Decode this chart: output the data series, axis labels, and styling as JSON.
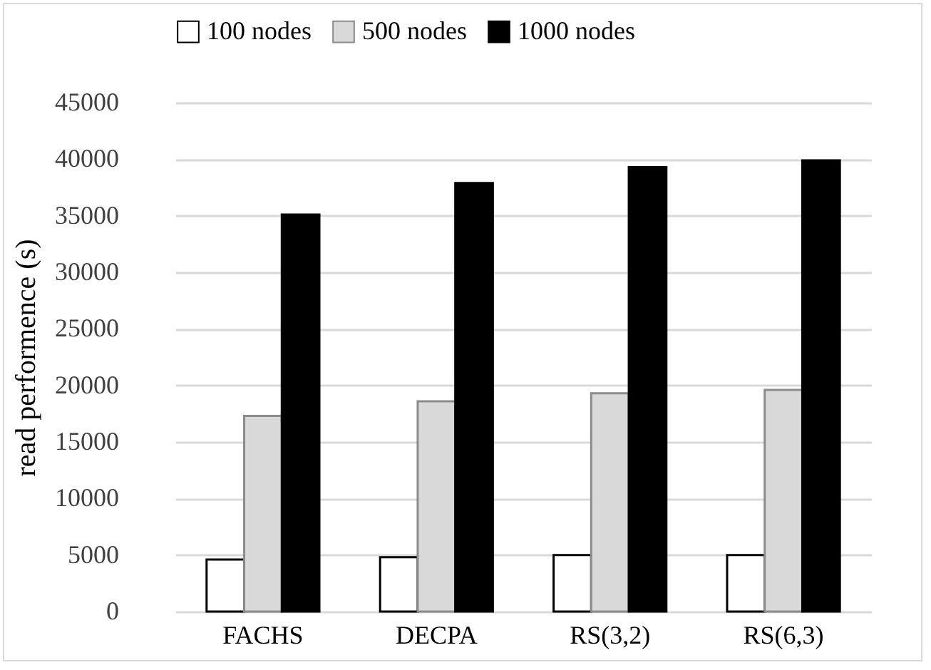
{
  "chart_data": {
    "type": "bar",
    "ylabel": "read performence (s)",
    "categories": [
      "FACHS",
      "DECPA",
      "RS(3,2)",
      "RS(6,3)"
    ],
    "series": [
      {
        "name": "100 nodes",
        "color": "#ffffff",
        "values": [
          4600,
          4800,
          5000,
          5000
        ]
      },
      {
        "name": "500 nodes",
        "color": "#d9d9d9",
        "values": [
          17300,
          18600,
          19300,
          19600
        ]
      },
      {
        "name": "1000 nodes",
        "color": "#000000",
        "values": [
          35100,
          37900,
          39300,
          39900
        ]
      }
    ],
    "ylim": [
      0,
      45000
    ],
    "yticks": [
      0,
      5000,
      10000,
      15000,
      20000,
      25000,
      30000,
      35000,
      40000,
      45000
    ],
    "grid": "y",
    "legend": "top"
  }
}
